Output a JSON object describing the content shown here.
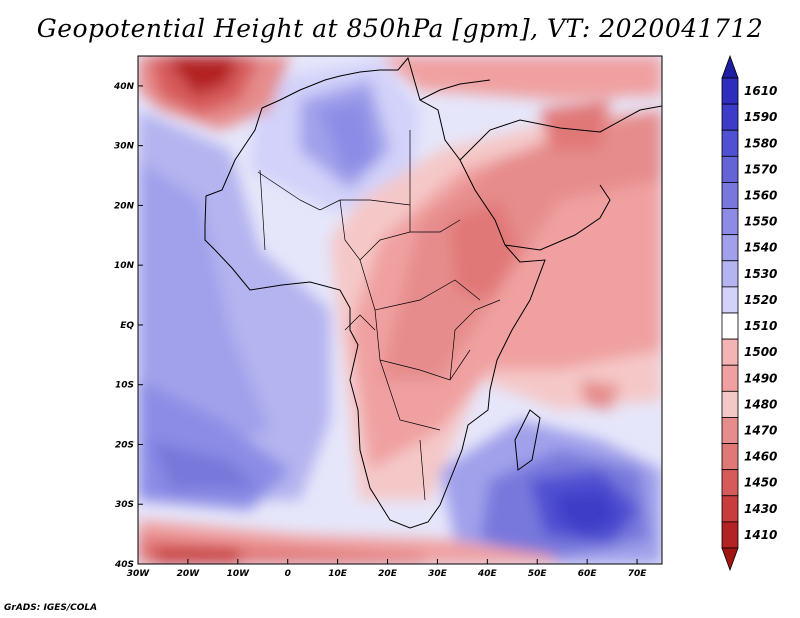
{
  "title": "Geopotential Height at 850hPa [gpm], VT: 2020041712",
  "footer": "GrADS: IGES/COLA",
  "map": {
    "lon_range": [
      -30,
      75
    ],
    "lat_range": [
      -40,
      45
    ],
    "lon_ticks": [
      {
        "value": -30,
        "label": "30W"
      },
      {
        "value": -20,
        "label": "20W"
      },
      {
        "value": -10,
        "label": "10W"
      },
      {
        "value": 0,
        "label": "0"
      },
      {
        "value": 10,
        "label": "10E"
      },
      {
        "value": 20,
        "label": "20E"
      },
      {
        "value": 30,
        "label": "30E"
      },
      {
        "value": 40,
        "label": "40E"
      },
      {
        "value": 50,
        "label": "50E"
      },
      {
        "value": 60,
        "label": "60E"
      },
      {
        "value": 70,
        "label": "70E"
      }
    ],
    "lat_ticks": [
      {
        "value": 40,
        "label": "40N"
      },
      {
        "value": 30,
        "label": "30N"
      },
      {
        "value": 20,
        "label": "20N"
      },
      {
        "value": 10,
        "label": "10N"
      },
      {
        "value": 0,
        "label": "EQ"
      },
      {
        "value": -10,
        "label": "10S"
      },
      {
        "value": -20,
        "label": "20S"
      },
      {
        "value": -30,
        "label": "30S"
      },
      {
        "value": -40,
        "label": "40S"
      }
    ]
  },
  "colorbar": {
    "top_arrow_color": "#1e1ea0",
    "bottom_arrow_color": "#a01414",
    "levels": [
      {
        "label": "1610",
        "color": "#2d2dbe"
      },
      {
        "label": "1590",
        "color": "#3c3cc8"
      },
      {
        "label": "1580",
        "color": "#5050d2"
      },
      {
        "label": "1570",
        "color": "#6464d7"
      },
      {
        "label": "1560",
        "color": "#7878dc"
      },
      {
        "label": "1550",
        "color": "#8c8ce6"
      },
      {
        "label": "1540",
        "color": "#a0a0eb"
      },
      {
        "label": "1530",
        "color": "#b4b4f0"
      },
      {
        "label": "1520",
        "color": "#d2d2fa"
      },
      {
        "label": "1510",
        "color": "#ffffff"
      },
      {
        "label": "1500",
        "color": "#f5b4b4"
      },
      {
        "label": "1490",
        "color": "#f0a0a0"
      },
      {
        "label": "1480",
        "color": "#f5c8c8"
      },
      {
        "label": "1470",
        "color": "#e68c8c"
      },
      {
        "label": "1460",
        "color": "#e17878"
      },
      {
        "label": "1450",
        "color": "#d75a5a"
      },
      {
        "label": "1430",
        "color": "#c83c3c"
      },
      {
        "label": "1410",
        "color": "#b42323"
      }
    ]
  }
}
